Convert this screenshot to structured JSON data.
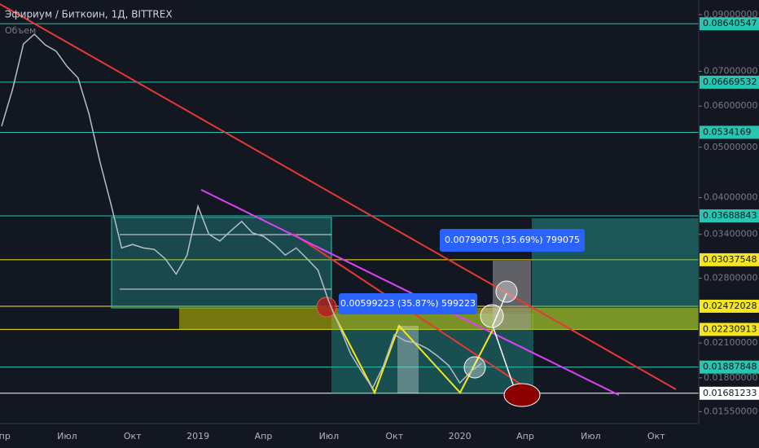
{
  "chart_data": {
    "type": "line",
    "title": "Эфириум / Биткоин, 1Д, BITTREX",
    "subtitle": "Объем",
    "categories": [
      "Апр",
      null,
      null,
      null,
      null,
      null,
      "Июл",
      null,
      null,
      null,
      null,
      null,
      "Окт",
      null,
      null,
      null,
      null,
      null,
      "2019",
      null,
      null,
      null,
      null,
      null,
      "Апр",
      null,
      null,
      null,
      null,
      null,
      "Июл",
      null,
      null,
      null,
      null,
      null,
      "Окт",
      null,
      null,
      null,
      null,
      null,
      "2020",
      null,
      null,
      null,
      null,
      null,
      "Апр",
      null,
      null,
      null,
      null,
      null,
      "Июл",
      null,
      null,
      null,
      null,
      null,
      "Окт",
      null,
      null,
      null
    ],
    "series": [
      {
        "color": "#b2bec8",
        "values": [
          0.0549,
          0.0646,
          0.079,
          0.0825,
          0.0787,
          0.0765,
          0.0715,
          0.068,
          0.058,
          0.047,
          0.039,
          0.032,
          0.0325,
          0.032,
          0.0318,
          0.0305,
          0.0285,
          0.031,
          0.0385,
          0.034,
          0.033,
          0.0345,
          0.036,
          0.0342,
          0.0337,
          0.0325,
          0.031,
          0.032,
          0.0305,
          0.029,
          0.0252,
          0.0225,
          0.02,
          0.0185,
          0.0172,
          0.019,
          0.0218,
          0.0212,
          0.021,
          0.0205,
          0.0198,
          0.019,
          0.0176,
          0.0185,
          0.0192,
          null,
          null,
          null,
          null,
          null,
          null,
          null,
          null,
          null,
          null,
          null,
          null,
          null,
          null,
          null,
          null,
          null,
          null,
          null
        ]
      }
    ],
    "log_scale": true,
    "ylim": [
      0.0147,
      0.096
    ],
    "yticks": [
      {
        "value": 0.09,
        "label": "0.09000000"
      },
      {
        "value": 0.07,
        "label": "0.07000000"
      },
      {
        "value": 0.06,
        "label": "0.06000000"
      },
      {
        "value": 0.05,
        "label": "0.05000000"
      },
      {
        "value": 0.04,
        "label": "0.04000000"
      },
      {
        "value": 0.034,
        "label": "0.03400000"
      },
      {
        "value": 0.028,
        "label": "0.02800000"
      },
      {
        "value": 0.021,
        "label": "0.02100000"
      },
      {
        "value": 0.018,
        "label": "0.01800000"
      },
      {
        "value": 0.0155,
        "label": "0.01550000"
      }
    ],
    "levels": [
      0.08640547,
      0.06669532,
      0.0534169,
      0.03688843,
      0.03037548,
      0.02472028,
      0.02230913,
      0.01887848,
      0.01681233
    ],
    "level_colors": [
      "#26c6b0",
      "#26c6b0",
      "#26c6b0",
      "#26c6b0",
      "#f5e61e",
      "#f5e61e",
      "#f5e61e",
      "#26c6b0",
      "#ffffff"
    ],
    "annotations": [
      "0.00599223 (35.87%) 599223",
      "0.00799075 (35.69%) 799075"
    ]
  }
}
